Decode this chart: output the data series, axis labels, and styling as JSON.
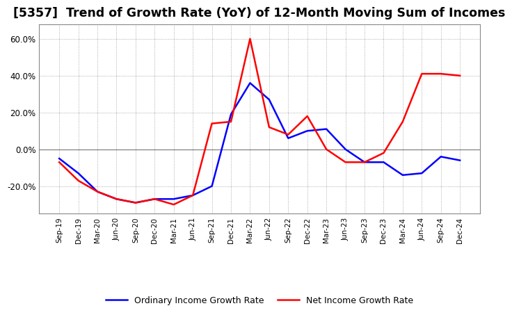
{
  "title": "[5357]  Trend of Growth Rate (YoY) of 12-Month Moving Sum of Incomes",
  "x_labels": [
    "Sep-19",
    "Dec-19",
    "Mar-20",
    "Jun-20",
    "Sep-20",
    "Dec-20",
    "Mar-21",
    "Jun-21",
    "Sep-21",
    "Dec-21",
    "Mar-22",
    "Jun-22",
    "Sep-22",
    "Dec-22",
    "Mar-23",
    "Jun-23",
    "Sep-23",
    "Dec-23",
    "Mar-24",
    "Jun-24",
    "Sep-24",
    "Dec-24"
  ],
  "ordinary_income": [
    -0.05,
    -0.13,
    -0.23,
    -0.27,
    -0.29,
    -0.27,
    -0.27,
    -0.25,
    -0.2,
    0.19,
    0.36,
    0.27,
    0.06,
    0.1,
    0.11,
    0.0,
    -0.07,
    -0.07,
    -0.14,
    -0.13,
    -0.04,
    -0.06
  ],
  "net_income": [
    -0.07,
    -0.17,
    -0.23,
    -0.27,
    -0.29,
    -0.27,
    -0.3,
    -0.25,
    0.14,
    0.15,
    0.6,
    0.12,
    0.08,
    0.18,
    0.0,
    -0.07,
    -0.07,
    -0.02,
    0.15,
    0.41,
    0.41,
    0.4
  ],
  "ordinary_color": "#0000FF",
  "net_color": "#FF0000",
  "background_color": "#FFFFFF",
  "grid_color": "#999999",
  "ylim": [
    -0.35,
    0.68
  ],
  "yticks": [
    -0.2,
    0.0,
    0.2,
    0.4,
    0.6
  ],
  "legend_ordinary": "Ordinary Income Growth Rate",
  "legend_net": "Net Income Growth Rate",
  "line_width": 1.8,
  "title_fontsize": 12.5
}
